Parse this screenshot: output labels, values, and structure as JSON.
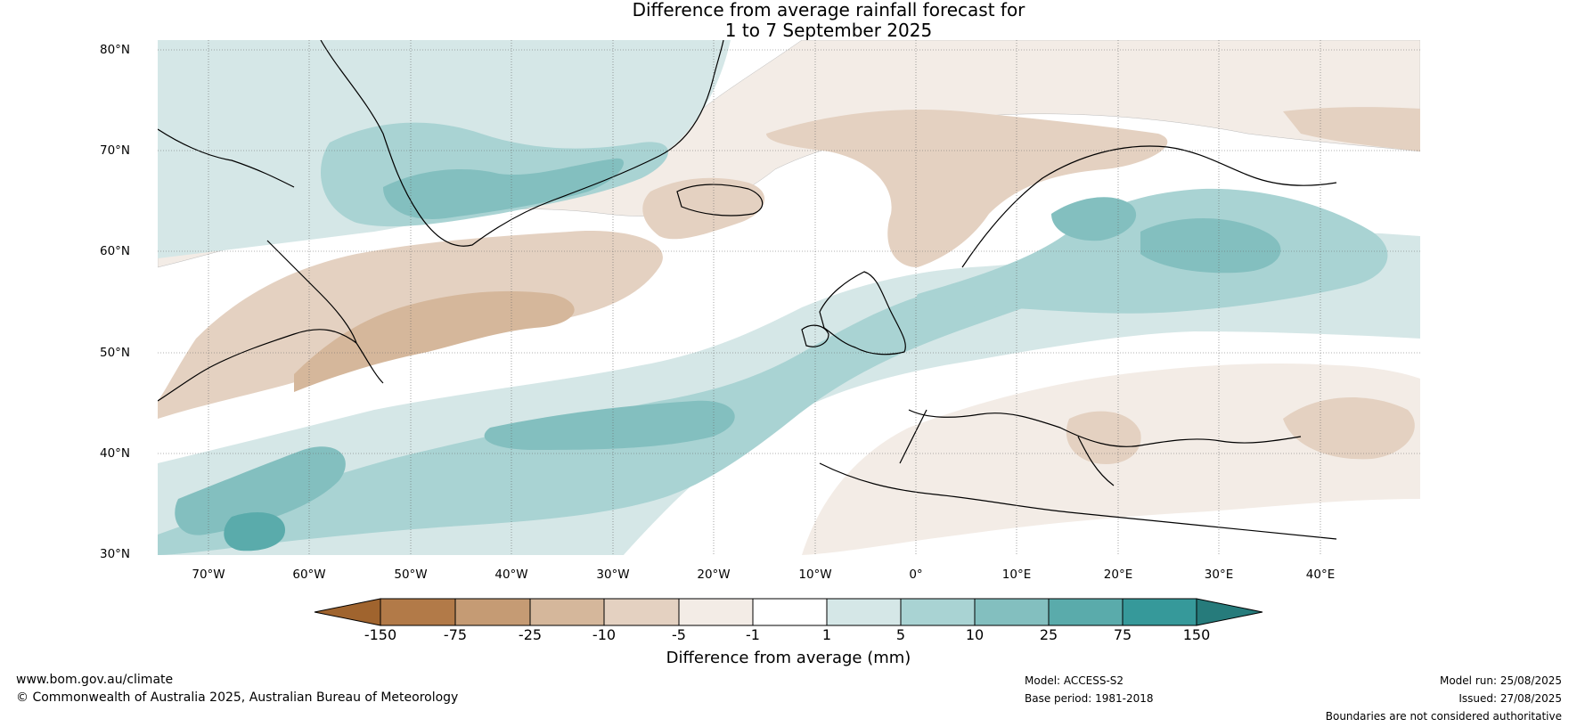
{
  "title": {
    "line1": "Difference from average rainfall forecast for",
    "line2": "1 to 7 September 2025"
  },
  "map": {
    "lat_labels": [
      "80°N",
      "70°N",
      "60°N",
      "50°N",
      "40°N",
      "30°N"
    ],
    "lon_labels": [
      "70°W",
      "60°W",
      "50°W",
      "40°W",
      "30°W",
      "20°W",
      "10°W",
      "0°",
      "10°E",
      "20°E",
      "30°E",
      "40°E"
    ],
    "colors": {
      "dry_150": "#a0642e",
      "dry_75": "#b27a48",
      "dry_25": "#c59b74",
      "dry_10": "#d5b79b",
      "dry_5": "#e4d1c1",
      "dry_1": "#f3ece6",
      "neutral": "#ffffff",
      "wet_1": "#d5e7e7",
      "wet_5": "#a9d3d3",
      "wet_10": "#83bfbf",
      "wet_25": "#5aabab",
      "wet_75": "#36999a",
      "wet_150": "#267b7b"
    }
  },
  "colorbar": {
    "ticks": [
      "-150",
      "-75",
      "-25",
      "-10",
      "-5",
      "-1",
      "1",
      "5",
      "10",
      "25",
      "75",
      "150"
    ],
    "label": "Difference from average (mm)"
  },
  "footer": {
    "website": "www.bom.gov.au/climate",
    "copyright": "© Commonwealth of Australia 2025, Australian Bureau of Meteorology",
    "model": "Model: ACCESS-S2",
    "base_period": "Base period: 1981-2018",
    "model_run": "Model run: 25/08/2025",
    "issued": "Issued: 27/08/2025",
    "disclaimer": "Boundaries are not considered authoritative"
  }
}
